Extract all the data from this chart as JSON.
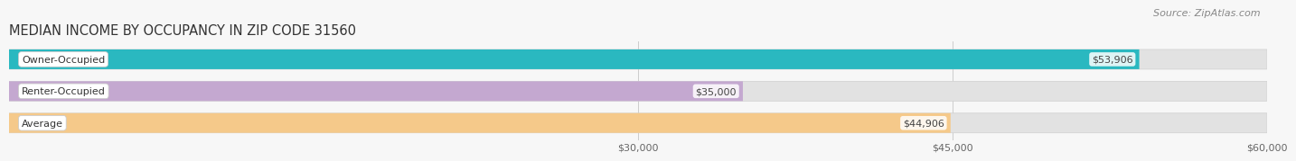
{
  "title": "MEDIAN INCOME BY OCCUPANCY IN ZIP CODE 31560",
  "source": "Source: ZipAtlas.com",
  "categories": [
    "Owner-Occupied",
    "Renter-Occupied",
    "Average"
  ],
  "values": [
    53906,
    35000,
    44906
  ],
  "labels": [
    "$53,906",
    "$35,000",
    "$44,906"
  ],
  "bar_colors": [
    "#2ab8c0",
    "#c4a8d0",
    "#f5c98a"
  ],
  "xlim_min": 0,
  "xlim_max": 60000,
  "xticks": [
    30000,
    45000,
    60000
  ],
  "xtick_labels": [
    "$30,000",
    "$45,000",
    "$60,000"
  ],
  "bar_height": 0.62,
  "background_color": "#f7f7f7",
  "bar_bg_color": "#e2e2e2",
  "title_fontsize": 10.5,
  "source_fontsize": 8,
  "label_fontsize": 8,
  "cat_fontsize": 8,
  "tick_fontsize": 8
}
